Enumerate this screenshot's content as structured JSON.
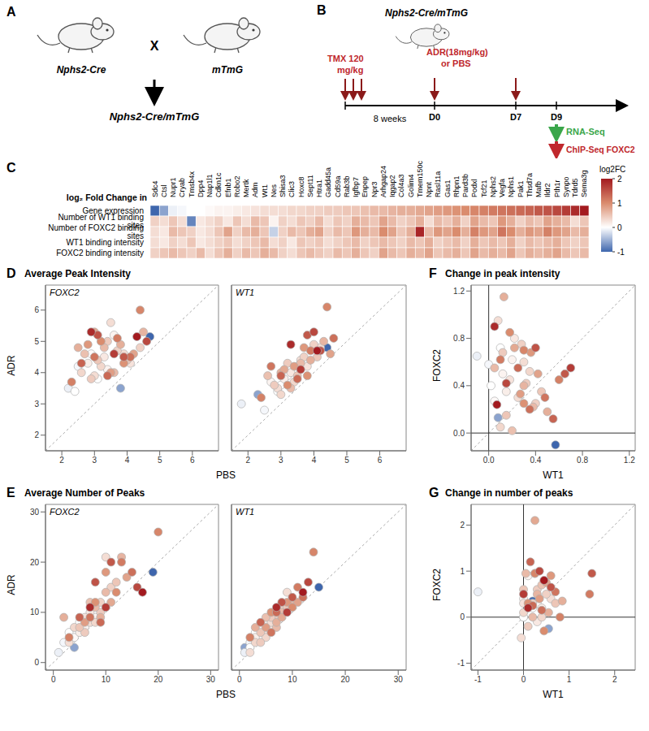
{
  "diagram_a": {
    "letter": "A",
    "parents": [
      "Nphs2-Cre",
      "mTmG"
    ],
    "cross": "X",
    "offspring": "Nphs2-Cre/mTmG"
  },
  "diagram_b": {
    "letter": "B",
    "title": "Nphs2-Cre/mTmG",
    "tmx": [
      "TMX 120",
      "mg/kg"
    ],
    "interval": "8 weeks",
    "treatment": [
      "ADR(18mg/kg)",
      "or PBS"
    ],
    "days": [
      "D0",
      "D7",
      "D9"
    ],
    "assays": [
      "RNA-Seq",
      "ChIP-Seq FOXC2"
    ]
  },
  "chart_data": [
    {
      "type": "heatmap",
      "letter": "C",
      "title": "log₂ Fold Change in",
      "columns": [
        "Sdc4",
        "Ctsl",
        "Nupr1",
        "Cryab",
        "Tmsb4x",
        "Dpp4",
        "Nap1l1",
        "Cdkn1c",
        "Efnb1",
        "Robo2",
        "Mertk",
        "Adm",
        "Wt1",
        "Nes",
        "Shisa3",
        "Clic3",
        "Hoxc8",
        "Sept11",
        "Htra1",
        "Gadd45a",
        "Cd59a",
        "Rab3b",
        "Igfbp7",
        "Enpep",
        "Npr3",
        "Arhgap24",
        "Iqgap2",
        "Col4a3",
        "Golim4",
        "Tmem150c",
        "Npnt",
        "Rasl11a",
        "Gas1",
        "Rhpn1",
        "Pard3b",
        "Podxl",
        "Tcf21",
        "Nphs2",
        "Vegfa",
        "Nphs1",
        "Pak1",
        "Thsd7a",
        "Mafb",
        "Ildr2",
        "Pth1r",
        "Synpo",
        "Tdrd5",
        "Sema3g"
      ],
      "rows": [
        "Gene expression",
        "Number of WT1 binding sites",
        "Number of FOXC2 binding sites",
        "WT1 binding intensity",
        "FOXC2 binding intensity"
      ],
      "cells": [
        [
          -1.0,
          -0.6,
          -0.1,
          -0.05,
          0.0,
          0.0,
          0.05,
          0.1,
          0.1,
          0.15,
          0.2,
          0.25,
          0.3,
          0.3,
          0.3,
          0.35,
          0.35,
          0.4,
          0.4,
          0.45,
          0.45,
          0.5,
          0.5,
          0.55,
          0.6,
          0.6,
          0.65,
          0.7,
          0.7,
          0.75,
          0.8,
          0.85,
          0.9,
          0.95,
          1.0,
          1.05,
          1.1,
          1.15,
          1.2,
          1.25,
          1.3,
          1.35,
          1.45,
          1.5,
          1.6,
          1.7,
          1.85,
          2.0
        ],
        [
          0.4,
          0.3,
          0.5,
          0.3,
          -0.8,
          0.2,
          0.3,
          0.4,
          0.2,
          0.5,
          0.3,
          0.6,
          0.5,
          0.1,
          0.4,
          0.3,
          0.5,
          0.4,
          0.6,
          0.3,
          0.5,
          0.4,
          0.7,
          0.6,
          0.5,
          0.8,
          0.6,
          0.4,
          0.5,
          0.7,
          0.3,
          0.6,
          0.5,
          0.7,
          0.4,
          0.8,
          0.6,
          0.5,
          0.9,
          0.7,
          0.4,
          0.6,
          0.5,
          0.8,
          0.7,
          0.6,
          0.3,
          0.5
        ],
        [
          0.3,
          0.2,
          0.6,
          0.5,
          0.4,
          0.2,
          0.3,
          0.5,
          0.8,
          0.4,
          0.6,
          0.7,
          0.5,
          -0.3,
          0.4,
          0.6,
          0.5,
          0.7,
          0.8,
          0.4,
          0.6,
          0.5,
          0.9,
          0.7,
          0.6,
          1.0,
          0.8,
          0.5,
          0.7,
          1.9,
          0.6,
          0.9,
          0.8,
          1.0,
          0.7,
          1.1,
          0.9,
          0.8,
          1.2,
          1.0,
          0.7,
          0.9,
          0.8,
          1.1,
          0.9,
          0.8,
          0.6,
          0.7
        ],
        [
          0.3,
          0.2,
          0.4,
          0.3,
          0.5,
          0.2,
          0.3,
          0.4,
          0.5,
          0.3,
          0.4,
          0.5,
          0.6,
          0.3,
          0.4,
          0.2,
          0.5,
          0.4,
          0.5,
          0.3,
          0.4,
          0.5,
          0.6,
          0.4,
          0.5,
          0.6,
          0.5,
          0.4,
          0.6,
          0.5,
          0.7,
          0.4,
          0.5,
          0.6,
          0.4,
          0.7,
          0.5,
          0.6,
          0.5,
          0.7,
          0.4,
          0.6,
          0.5,
          0.6,
          0.7,
          0.5,
          0.4,
          0.5
        ],
        [
          0.4,
          0.5,
          0.6,
          0.5,
          0.4,
          0.6,
          0.3,
          0.5,
          0.7,
          0.4,
          0.6,
          0.5,
          0.7,
          0.6,
          0.4,
          0.3,
          0.5,
          0.6,
          0.5,
          0.4,
          0.6,
          0.5,
          0.7,
          0.5,
          0.4,
          0.8,
          0.6,
          0.5,
          0.7,
          0.6,
          0.8,
          0.5,
          0.6,
          0.7,
          0.5,
          0.8,
          0.6,
          0.7,
          0.6,
          0.8,
          0.5,
          0.7,
          0.6,
          0.7,
          0.8,
          0.6,
          0.5,
          0.6
        ]
      ],
      "colorbar": {
        "label": "log2FC",
        "range": [
          -1,
          2
        ],
        "ticks": [
          2,
          1,
          0,
          -1
        ]
      }
    },
    {
      "type": "scatter",
      "letter": "D",
      "title": "Average Peak Intensity",
      "x_label": "PBS",
      "y_label": "ADR",
      "xlim": [
        1.5,
        6.8
      ],
      "xticks": [
        2,
        3,
        4,
        5,
        6
      ],
      "ylim": [
        1.5,
        6.8
      ],
      "yticks": [
        2,
        3,
        4,
        5,
        6
      ],
      "series": [
        {
          "name": "FOXC2",
          "x": [
            4.7,
            3.8,
            2.2,
            2.5,
            2.4,
            3.1,
            2.9,
            3.4,
            3.6,
            2.8,
            3.3,
            4.1,
            3.5,
            3.9,
            3.0,
            2.6,
            3.2,
            3.7,
            4.4,
            2.9,
            3.4,
            3.1,
            4.0,
            2.7,
            3.6,
            3.3,
            4.5,
            2.5,
            3.8,
            3.0,
            4.2,
            3.5,
            2.8,
            3.9,
            3.2,
            4.4,
            2.3,
            3.7,
            3.0,
            4.1,
            3.4,
            2.6,
            3.9,
            3.1,
            4.6,
            3.6,
            2.9,
            4.3
          ],
          "y": [
            5.15,
            3.5,
            3.5,
            4.2,
            3.4,
            3.8,
            4.6,
            4.1,
            5.2,
            4.3,
            4.5,
            4.3,
            5.6,
            4.6,
            3.9,
            4.0,
            4.2,
            4.7,
            4.8,
            3.8,
            5.0,
            4.4,
            4.4,
            4.6,
            4.0,
            4.8,
            5.3,
            4.8,
            4.9,
            5.3,
            4.6,
            4.0,
            4.9,
            4.3,
            5.0,
            6.0,
            3.7,
            5.1,
            4.5,
            4.5,
            3.9,
            4.3,
            4.5,
            5.2,
            5.0,
            4.6,
            5.3,
            5.15
          ]
        },
        {
          "name": "WT1",
          "x": [
            4.4,
            2.3,
            1.8,
            2.5,
            2.9,
            3.0,
            3.2,
            2.7,
            3.5,
            3.1,
            3.3,
            3.8,
            4.2,
            3.6,
            2.9,
            3.0,
            3.4,
            3.7,
            4.0,
            2.8,
            3.2,
            3.5,
            4.1,
            2.6,
            3.3,
            3.6,
            4.3,
            3.0,
            3.9,
            3.1,
            4.5,
            3.4,
            3.7,
            3.8,
            3.2,
            4.4,
            2.4,
            3.9,
            2.7,
            4.6,
            3.5,
            3.0,
            3.8,
            4.2,
            4.0,
            3.6,
            3.3,
            4.1
          ],
          "y": [
            4.8,
            3.3,
            3.0,
            2.8,
            3.4,
            3.6,
            3.9,
            3.7,
            4.2,
            3.8,
            4.0,
            4.2,
            4.8,
            4.4,
            3.5,
            3.3,
            3.7,
            4.5,
            4.9,
            3.6,
            4.3,
            3.9,
            4.5,
            3.9,
            3.5,
            4.3,
            5.0,
            4.0,
            4.4,
            4.1,
            4.6,
            4.2,
            4.8,
            3.9,
            3.6,
            6.1,
            3.2,
            4.7,
            4.2,
            5.1,
            3.8,
            3.9,
            5.2,
            4.7,
            5.3,
            4.1,
            4.9,
            4.7
          ]
        }
      ]
    },
    {
      "type": "scatter",
      "letter": "E",
      "title": "Average Number of Peaks",
      "x_label": "PBS",
      "y_label": "ADR",
      "xlim": [
        -1.5,
        31.5
      ],
      "xticks": [
        0,
        10,
        20,
        30
      ],
      "ylim": [
        -1.5,
        31.5
      ],
      "yticks": [
        0,
        10,
        20,
        30
      ],
      "series": [
        {
          "name": "FOXC2",
          "x": [
            19,
            4,
            1,
            2,
            3,
            5,
            4,
            6,
            8,
            5,
            7,
            6,
            10,
            7,
            3,
            4,
            8,
            9,
            11,
            6,
            9,
            5,
            12,
            7,
            8,
            10,
            13,
            2,
            9,
            11,
            14,
            6,
            10,
            8,
            12,
            20,
            3,
            13,
            7,
            15,
            9,
            5,
            11,
            8,
            16,
            10,
            7,
            17
          ],
          "y": [
            18,
            3,
            2,
            4,
            6,
            8,
            5,
            7,
            9,
            6,
            10,
            9,
            21,
            8,
            4,
            7,
            8,
            12,
            15,
            6,
            10,
            7,
            16,
            12,
            11,
            14,
            21,
            9,
            9,
            12,
            17,
            8,
            18,
            12,
            14,
            26,
            5,
            20,
            9,
            18,
            8,
            9,
            20,
            16,
            15,
            11,
            11,
            14
          ]
        },
        {
          "name": "WT1",
          "x": [
            15,
            1,
            1,
            2,
            2,
            3,
            4,
            4,
            5,
            3,
            6,
            5,
            9,
            6,
            2,
            3,
            5,
            7,
            8,
            4,
            6,
            4,
            9,
            5,
            7,
            8,
            10,
            3,
            7,
            8,
            11,
            5,
            9,
            6,
            10,
            14,
            2,
            11,
            6,
            12,
            7,
            4,
            10,
            8,
            13,
            9,
            7,
            12
          ],
          "y": [
            15,
            3,
            2,
            4,
            3,
            6,
            5,
            7,
            8,
            5,
            7,
            6,
            14,
            8,
            2,
            4,
            5,
            9,
            11,
            4,
            9,
            6,
            11,
            9,
            7,
            10,
            12,
            7,
            8,
            9,
            12,
            7,
            12,
            10,
            11,
            22,
            5,
            15,
            6,
            13,
            10,
            8,
            13,
            12,
            16,
            10,
            11,
            14
          ]
        }
      ]
    },
    {
      "type": "scatter",
      "letter": "F",
      "title": "Change in peak intensity",
      "x_label": "WT1",
      "y_label": "FOXC2",
      "xlim": [
        -0.15,
        1.25
      ],
      "xticks": [
        {
          "value": 0,
          "label": "0.0"
        },
        {
          "value": 0.4,
          "label": "0.4"
        },
        {
          "value": 0.8,
          "label": "0.8"
        },
        {
          "value": 1.2,
          "label": "1.2"
        }
      ],
      "ylim": [
        -0.15,
        1.25
      ],
      "yticks": [
        {
          "value": 0,
          "label": "0.0"
        },
        {
          "value": 0.4,
          "label": "0.4"
        },
        {
          "value": 0.8,
          "label": "0.8"
        },
        {
          "value": 1.2,
          "label": "1.2"
        }
      ],
      "series": [
        {
          "x": [
            0.57,
            0.08,
            -0.1,
            0.0,
            0.02,
            0.1,
            0.05,
            0.12,
            0.2,
            0.15,
            0.22,
            0.18,
            0.3,
            0.08,
            0.25,
            0.1,
            0.35,
            0.28,
            0.4,
            0.12,
            0.32,
            0.15,
            0.45,
            0.2,
            0.38,
            0.05,
            0.3,
            0.13,
            0.5,
            0.22,
            0.42,
            0.27,
            0.36,
            0.3,
            0.18,
            0.3,
            0.6,
            0.1,
            0.48,
            0.35,
            0.25,
            0.55,
            0.65,
            0.4,
            0.15,
            0.7,
            0.05,
            0.07
          ],
          "y": [
            -0.1,
            0.13,
            0.65,
            0.58,
            0.4,
            0.72,
            0.27,
            0.5,
            0.62,
            0.35,
            0.8,
            0.45,
            0.6,
            0.95,
            0.3,
            0.05,
            0.52,
            0.75,
            0.25,
            0.68,
            0.42,
            0.15,
            0.35,
            0.02,
            0.22,
            0.55,
            0.4,
            1.15,
            0.18,
            0.72,
            0.5,
            0.33,
            0.68,
            0.25,
            0.85,
            0.7,
            0.45,
            0.62,
            0.3,
            0.2,
            0.55,
            0.12,
            0.5,
            0.72,
            0.42,
            0.55,
            0.9,
            0.24
          ]
        }
      ]
    },
    {
      "type": "scatter",
      "letter": "G",
      "title": "Change in number of peaks",
      "x_label": "WT1",
      "y_label": "FOXC2",
      "xlim": [
        -1.15,
        2.45
      ],
      "xticks": [
        -1,
        0,
        1,
        2
      ],
      "ylim": [
        -1.15,
        2.45
      ],
      "yticks": [
        -1,
        0,
        1,
        2
      ],
      "series": [
        {
          "x": [
            0.2,
            0.55,
            -1.0,
            0.0,
            0.0,
            0.2,
            0.3,
            0.0,
            0.1,
            0.4,
            0.3,
            0.0,
            0.25,
            0.6,
            -0.05,
            0.0,
            0.4,
            0.2,
            0.5,
            0.1,
            0.3,
            0.0,
            0.7,
            0.4,
            0.2,
            0.05,
            0.3,
            0.85,
            0.55,
            0.25,
            0.5,
            0.35,
            0.6,
            0.1,
            0.45,
            0.25,
            0.8,
            1.45,
            0.7,
            0.4,
            0.2,
            0.15,
            1.5,
            0.6,
            0.35,
            0.0,
            0.1,
            0.45
          ],
          "y": [
            0.35,
            -0.25,
            0.55,
            0.0,
            0.0,
            0.2,
            0.3,
            0.4,
            0.9,
            0.2,
            -0.1,
            0.3,
            0.95,
            0.4,
            -0.45,
            0.1,
            0.0,
            0.3,
            0.5,
            -0.2,
            0.6,
            0.6,
            0.3,
            0.7,
            0.0,
            0.95,
            0.5,
            0.35,
            0.1,
            2.1,
            0.75,
            0.4,
            0.9,
            0.3,
            -0.3,
            0.95,
            0.0,
            0.5,
            0.55,
            0.15,
            0.25,
            1.2,
            0.95,
            0.65,
            1.0,
            0.5,
            0.2,
            0.8
          ]
        }
      ]
    }
  ]
}
